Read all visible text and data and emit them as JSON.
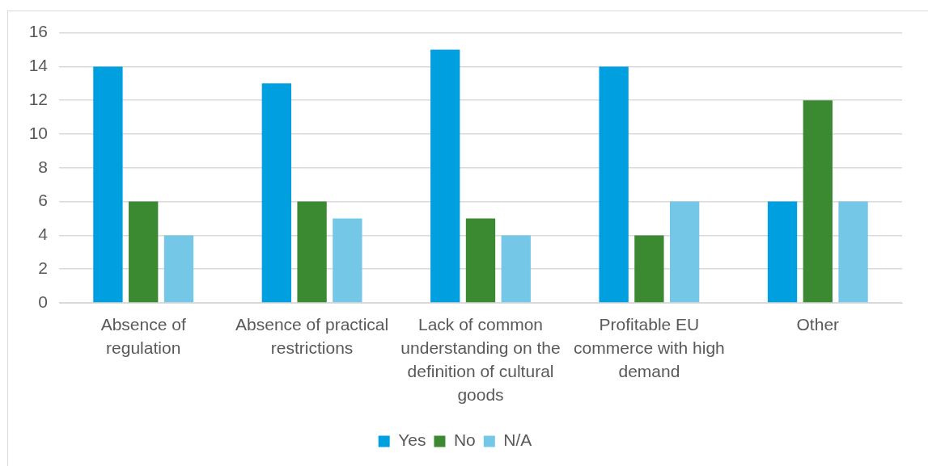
{
  "chart_data": {
    "type": "bar",
    "categories": [
      "Absence of regulation",
      "Absence of practical restrictions",
      "Lack of common understanding on the definition of cultural goods",
      "Profitable EU commerce with high demand",
      "Other"
    ],
    "series": [
      {
        "name": "Yes",
        "color": "#009fdf",
        "values": [
          14,
          13,
          15,
          14,
          6
        ]
      },
      {
        "name": "No",
        "color": "#3b8a31",
        "values": [
          6,
          6,
          5,
          4,
          12
        ]
      },
      {
        "name": "N/A",
        "color": "#74c7e7",
        "values": [
          4,
          5,
          4,
          6,
          6
        ]
      }
    ],
    "ylim": [
      0,
      16
    ],
    "yticks": [
      0,
      2,
      4,
      6,
      8,
      10,
      12,
      14,
      16
    ],
    "grid": "y",
    "legend": "bottom"
  }
}
